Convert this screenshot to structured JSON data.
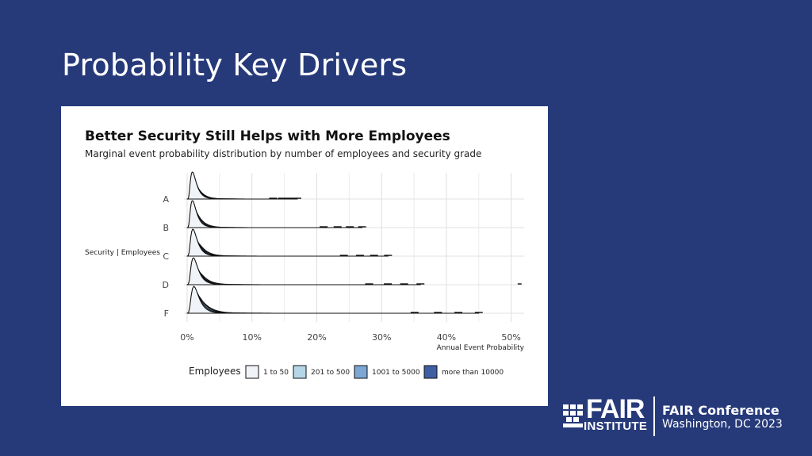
{
  "slide": {
    "title": "Probability Key Drivers"
  },
  "logo": {
    "word1": "FAIR",
    "word2": "INSTITUTE",
    "conference": "FAIR Conference",
    "location": "Washington, DC 2023"
  },
  "colors": {
    "background": "#263a7a",
    "card": "#ffffff",
    "series": [
      "#f0f3f7",
      "#b4d6e6",
      "#7da7d4",
      "#3e5fa3"
    ]
  },
  "chart_data": {
    "type": "ridgeline",
    "title": "Better Security Still Helps with More Employees",
    "subtitle": "Marginal event probability distribution by number of employees and security grade",
    "xlabel": "Annual Event Probability",
    "ylabel": "Security | Employees",
    "x_ticks": [
      "0%",
      "10%",
      "20%",
      "30%",
      "40%",
      "50%"
    ],
    "xlim": [
      0,
      0.52
    ],
    "categories": [
      "A",
      "B",
      "C",
      "D",
      "F"
    ],
    "legend_title": "Employees",
    "legend_position": "bottom",
    "grid": true,
    "series": [
      {
        "name": "1 to 50",
        "color": "#f0f3f7"
      },
      {
        "name": "201 to 500",
        "color": "#b4d6e6"
      },
      {
        "name": "1001 to 5000",
        "color": "#7da7d4"
      },
      {
        "name": "more than 10000",
        "color": "#3e5fa3"
      }
    ],
    "peaks": {
      "A": [
        0.011,
        0.012,
        0.013,
        0.015
      ],
      "B": [
        0.011,
        0.012,
        0.014,
        0.016
      ],
      "C": [
        0.012,
        0.013,
        0.015,
        0.018
      ],
      "D": [
        0.013,
        0.014,
        0.016,
        0.019
      ],
      "F": [
        0.014,
        0.016,
        0.019,
        0.022
      ]
    },
    "tail_extent": {
      "A": 0.17,
      "B": 0.27,
      "C": 0.31,
      "D": 0.36,
      "F": 0.45
    }
  }
}
